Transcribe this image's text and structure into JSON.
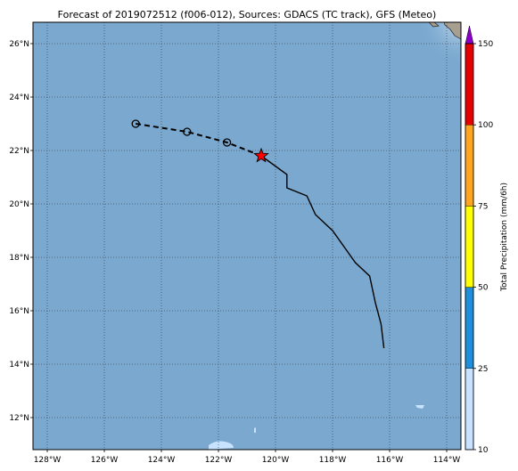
{
  "title": "Forecast of 2019072512 (f006-012), Sources: GDACS (TC track), GFS (Meteo)",
  "map": {
    "lon_range": [
      -128.5,
      -113.5
    ],
    "lat_range": [
      10.8,
      26.8
    ],
    "lon_ticks": [
      -128,
      -126,
      -124,
      -122,
      -120,
      -118,
      -116,
      -114
    ],
    "lon_labels": [
      "128°W",
      "126°W",
      "124°W",
      "122°W",
      "120°W",
      "118°W",
      "116°W",
      "114°W"
    ],
    "lat_ticks": [
      12,
      14,
      16,
      18,
      20,
      22,
      24,
      26
    ],
    "lat_labels": [
      "12°N",
      "14°N",
      "16°N",
      "18°N",
      "20°N",
      "22°N",
      "24°N",
      "26°N"
    ],
    "ocean_color": "#7aa8cf",
    "grid": "dotted"
  },
  "track": {
    "past": [
      [
        -116.2,
        14.6
      ],
      [
        -116.3,
        15.5
      ],
      [
        -116.5,
        16.3
      ],
      [
        -116.7,
        17.3
      ],
      [
        -117.2,
        17.8
      ],
      [
        -117.6,
        18.4
      ],
      [
        -118.0,
        19.0
      ],
      [
        -118.6,
        19.6
      ],
      [
        -118.9,
        20.3
      ],
      [
        -119.6,
        20.6
      ],
      [
        -119.6,
        21.1
      ],
      [
        -120.5,
        21.8
      ]
    ],
    "current": [
      -120.5,
      21.8
    ],
    "forecast": [
      [
        -120.5,
        21.8
      ],
      [
        -121.7,
        22.3
      ],
      [
        -123.1,
        22.7
      ],
      [
        -124.9,
        23.0
      ]
    ],
    "forecast_points": [
      [
        -121.7,
        22.3
      ],
      [
        -123.1,
        22.7
      ],
      [
        -124.9,
        23.0
      ]
    ],
    "current_marker_color": "#ff0000"
  },
  "colorbar": {
    "label": "Total Precipitation (mm/6h)",
    "ticks": [
      "10",
      "25",
      "50",
      "75",
      "100",
      "150"
    ],
    "colors": [
      "#c8e3ff",
      "#1e8fdc",
      "#ffff00",
      "#ffa520",
      "#e60000"
    ],
    "extend_color": "#8a00c8"
  }
}
